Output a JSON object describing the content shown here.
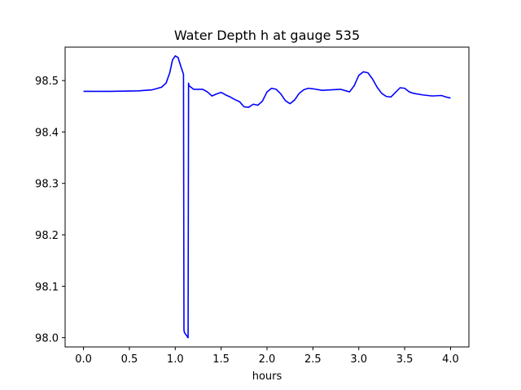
{
  "chart_data": {
    "type": "line",
    "title": "Water Depth h at gauge 535",
    "xlabel": "hours",
    "ylabel": "",
    "xlim": [
      -0.2,
      4.2
    ],
    "ylim": [
      97.982,
      98.565
    ],
    "xticks": [
      0.0,
      0.5,
      1.0,
      1.5,
      2.0,
      2.5,
      3.0,
      3.5,
      4.0
    ],
    "xtick_labels": [
      "0.0",
      "0.5",
      "1.0",
      "1.5",
      "2.0",
      "2.5",
      "3.0",
      "3.5",
      "4.0"
    ],
    "yticks": [
      98.0,
      98.1,
      98.2,
      98.3,
      98.4,
      98.5
    ],
    "ytick_labels": [
      "98.0",
      "98.1",
      "98.2",
      "98.3",
      "98.4",
      "98.5"
    ],
    "grid": false,
    "colors": {
      "series": "#0000ff",
      "axes": "#000000",
      "background": "#ffffff"
    },
    "series": [
      {
        "x": [
          0.0,
          0.3,
          0.6,
          0.75,
          0.85,
          0.9,
          0.94,
          0.97,
          1.0,
          1.03,
          1.06,
          1.09,
          1.095,
          1.1,
          1.14,
          1.145,
          1.15,
          1.2,
          1.3,
          1.35,
          1.4,
          1.45,
          1.5,
          1.55,
          1.6,
          1.65,
          1.7,
          1.75,
          1.8,
          1.85,
          1.9,
          1.95,
          2.0,
          2.05,
          2.1,
          2.15,
          2.2,
          2.25,
          2.3,
          2.35,
          2.4,
          2.45,
          2.5,
          2.6,
          2.7,
          2.8,
          2.9,
          2.95,
          3.0,
          3.05,
          3.1,
          3.15,
          3.2,
          3.25,
          3.3,
          3.35,
          3.4,
          3.45,
          3.5,
          3.55,
          3.6,
          3.7,
          3.8,
          3.9,
          3.95,
          4.0
        ],
        "y": [
          98.479,
          98.479,
          98.48,
          98.482,
          98.487,
          98.495,
          98.515,
          98.54,
          98.548,
          98.545,
          98.528,
          98.512,
          98.015,
          98.01,
          98.0,
          98.495,
          98.49,
          98.483,
          98.483,
          98.478,
          98.47,
          98.474,
          98.477,
          98.472,
          98.468,
          98.463,
          98.459,
          98.449,
          98.448,
          98.454,
          98.452,
          98.46,
          98.478,
          98.485,
          98.483,
          98.474,
          98.461,
          98.455,
          98.462,
          98.475,
          98.482,
          98.485,
          98.484,
          98.481,
          98.482,
          98.483,
          98.478,
          98.49,
          98.51,
          98.517,
          98.515,
          98.503,
          98.487,
          98.475,
          98.469,
          98.468,
          98.477,
          98.486,
          98.485,
          98.478,
          98.475,
          98.472,
          98.47,
          98.471,
          98.468,
          98.466
        ]
      }
    ]
  }
}
